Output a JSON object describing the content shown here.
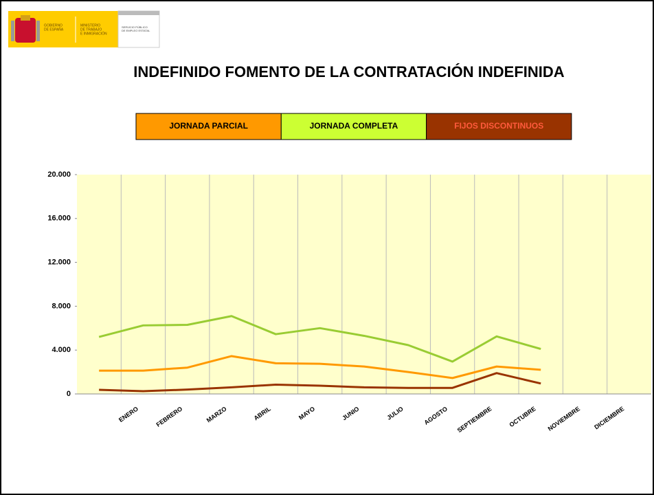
{
  "header": {
    "logo_lines": [
      "GOBIERNO",
      "DE ESPAÑA",
      "MINISTERIO",
      "DE TRABAJO",
      "E INMIGRACIÓN",
      "SERVICIO PÚBLICO",
      "DE EMPLEO ESTATAL"
    ]
  },
  "chart_data": {
    "type": "line",
    "title": "INDEFINIDO FOMENTO DE LA CONTRATACIÓN INDEFINIDA",
    "categories": [
      null,
      "ENERO",
      "FEBRERO",
      "MARZO",
      "ABRIL",
      "MAYO",
      "JUNIO",
      "JULIO",
      "AGOSTO",
      "SEPTIEMBRE",
      "OCTUBRE",
      "NOVIEMBRE",
      "DICIEMBRE"
    ],
    "series": [
      {
        "name": "JORNADA PARCIAL",
        "color": "#ff9900",
        "legend_color": "#ff9900",
        "values": [
          2125,
          2125,
          2400,
          3450,
          2800,
          2750,
          2500,
          2000,
          1450,
          2500,
          2200,
          null,
          null
        ]
      },
      {
        "name": "JORNADA COMPLETA",
        "color": "#99cc33",
        "legend_color": "#ccff33",
        "values": [
          5200,
          6250,
          6300,
          7100,
          5450,
          6000,
          5300,
          4450,
          2950,
          5250,
          4100,
          null,
          null
        ]
      },
      {
        "name": "FIJOS DISCONTINUOS",
        "color": "#993300",
        "legend_color": "#993300",
        "values": [
          375,
          250,
          400,
          600,
          850,
          750,
          600,
          550,
          550,
          1900,
          950,
          null,
          null
        ]
      }
    ],
    "ylim": [
      0,
      20000
    ],
    "yticks": [
      0,
      {
        "value": 4000,
        "label": "4.000"
      },
      {
        "value": 8000,
        "label": "8.000"
      },
      {
        "value": 12000,
        "label": "12.000"
      },
      {
        "value": 16000,
        "label": "16.000"
      },
      {
        "value": 20000,
        "label": "20.000"
      }
    ],
    "plot_background": "#ffffcc",
    "grid": "x"
  }
}
